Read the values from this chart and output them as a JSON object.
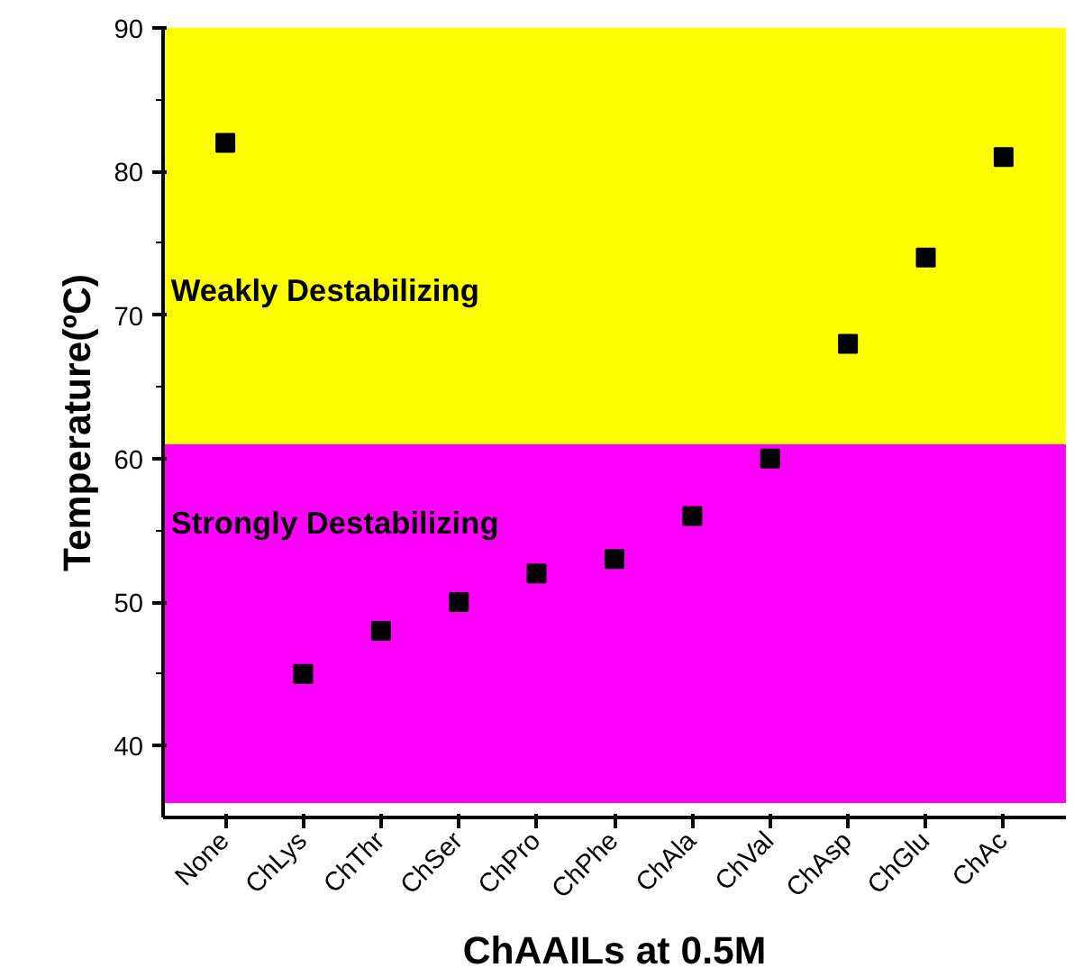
{
  "chart_data": {
    "type": "scatter",
    "xlabel": "ChAAILs at 0.5M",
    "ylabel": "Temperature(ºC)",
    "categories": [
      "None",
      "ChLys",
      "ChThr",
      "ChSer",
      "ChPro",
      "ChPhe",
      "ChAla",
      "ChVal",
      "ChAsp",
      "ChGlu",
      "ChAc"
    ],
    "series": [
      {
        "color": "#000000",
        "values": [
          82,
          45,
          48,
          50,
          52,
          53,
          56,
          60,
          68,
          74,
          81
        ]
      }
    ],
    "ylim": [
      35,
      90
    ],
    "yticks": [
      40,
      50,
      60,
      70,
      80,
      90
    ],
    "bands": [
      {
        "axis": "y",
        "from": 61,
        "to": 90,
        "label": "Weakly Destabilizing",
        "color": "#ffff00"
      },
      {
        "axis": "y",
        "from": 36,
        "to": 61,
        "label": "Strongly Destabilizing",
        "color": "#ff00ff"
      }
    ],
    "marker": "square",
    "grid": false
  }
}
